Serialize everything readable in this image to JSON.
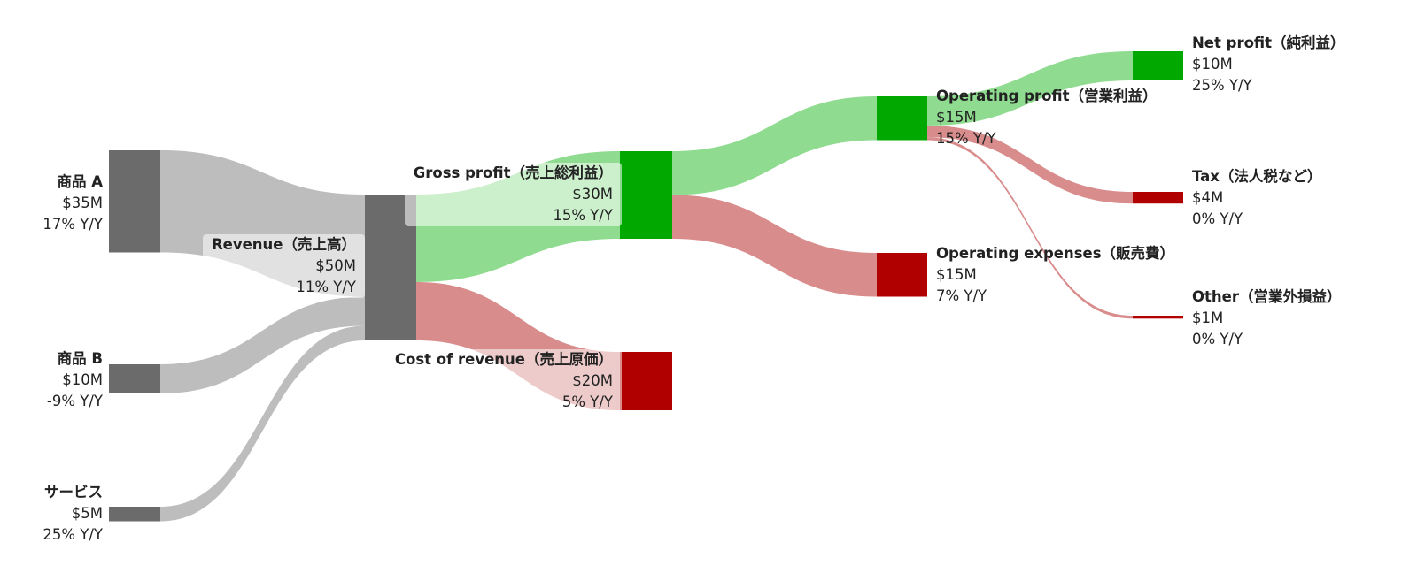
{
  "colors": {
    "neutral_node": "#6b6b6b",
    "neutral_link": "#bdbdbd",
    "profit_node": "#00a800",
    "profit_link": "#8fdb8f",
    "cost_node": "#b00000",
    "cost_link": "#d98c8c"
  },
  "nodes": {
    "product_a": {
      "title": "商品 A",
      "value": "$35M",
      "growth": "17% Y/Y"
    },
    "product_b": {
      "title": "商品 B",
      "value": "$10M",
      "growth": "-9% Y/Y"
    },
    "service": {
      "title": "サービス",
      "value": "$5M",
      "growth": "25% Y/Y"
    },
    "revenue": {
      "title": "Revenue（売上高）",
      "value": "$50M",
      "growth": "11% Y/Y"
    },
    "gross_profit": {
      "title": "Gross profit（売上総利益）",
      "value": "$30M",
      "growth": "15% Y/Y"
    },
    "cost_of_revenue": {
      "title": "Cost of revenue（売上原価）",
      "value": "$20M",
      "growth": "5% Y/Y"
    },
    "operating_profit": {
      "title": "Operating profit（営業利益）",
      "value": "$15M",
      "growth": "15% Y/Y"
    },
    "operating_expenses": {
      "title": "Operating expenses（販売費）",
      "value": "$15M",
      "growth": "7% Y/Y"
    },
    "net_profit": {
      "title": "Net profit（純利益）",
      "value": "$10M",
      "growth": "25% Y/Y"
    },
    "tax": {
      "title": "Tax（法人税など）",
      "value": "$4M",
      "growth": "0% Y/Y"
    },
    "other": {
      "title": "Other（営業外損益）",
      "value": "$1M",
      "growth": "0% Y/Y"
    }
  },
  "chart_data": {
    "type": "sankey",
    "unit": "$M",
    "flows": [
      {
        "source": "商品 A",
        "target": "Revenue（売上高）",
        "value": 35
      },
      {
        "source": "商品 B",
        "target": "Revenue（売上高）",
        "value": 10
      },
      {
        "source": "サービス",
        "target": "Revenue（売上高）",
        "value": 5
      },
      {
        "source": "Revenue（売上高）",
        "target": "Gross profit（売上総利益）",
        "value": 30
      },
      {
        "source": "Revenue（売上高）",
        "target": "Cost of revenue（売上原価）",
        "value": 20
      },
      {
        "source": "Gross profit（売上総利益）",
        "target": "Operating profit（営業利益）",
        "value": 15
      },
      {
        "source": "Gross profit（売上総利益）",
        "target": "Operating expenses（販売費）",
        "value": 15
      },
      {
        "source": "Operating profit（営業利益）",
        "target": "Net profit（純利益）",
        "value": 10
      },
      {
        "source": "Operating profit（営業利益）",
        "target": "Tax（法人税など）",
        "value": 4
      },
      {
        "source": "Operating profit（営業利益）",
        "target": "Other（営業外損益）",
        "value": 1
      }
    ]
  }
}
